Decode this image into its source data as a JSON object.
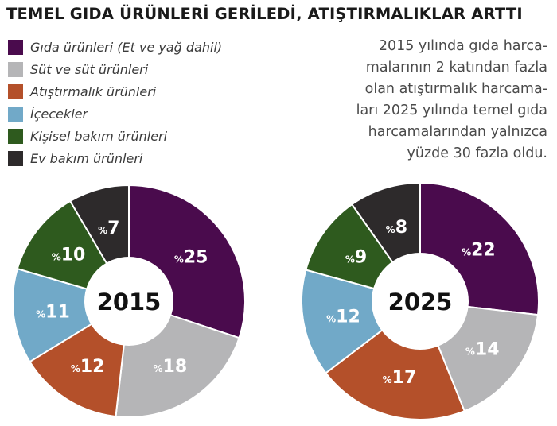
{
  "title": "TEMEL GIDA ÜRÜNLERİ GERİLEDİ, ATIŞTIRMALIKLAR ARTTI",
  "note_lines": [
    "2015 yılında gıda harca-",
    "malarının 2 katından fazla",
    "olan atıştırmalık harcama-",
    "ları 2025 yılında temel gıda",
    "harcamalarından yalnızca",
    "yüzde 30 fazla oldu."
  ],
  "percent_prefix": "%",
  "colors": {
    "gida": "#4a0b4d",
    "sut": "#b5b5b7",
    "atistirmalik": "#b4502a",
    "icecek": "#71a9c8",
    "kisisel": "#2e5a1e",
    "ev": "#2d2a2b"
  },
  "chart_data": {
    "type": "pie",
    "style": "donut",
    "categories": [
      "Gıda ürünleri (Et ve yağ dahil)",
      "Süt ve süt ürünleri",
      "Atıştırmalık ürünleri",
      "İçecekler",
      "Kişisel bakım ürünleri",
      "Ev bakım ürünleri"
    ],
    "series": [
      {
        "name": "2015",
        "values": [
          25,
          18,
          12,
          11,
          10,
          7
        ]
      },
      {
        "name": "2025",
        "values": [
          22,
          14,
          17,
          12,
          9,
          8
        ]
      }
    ],
    "legend_position": "top-left",
    "unit": "%"
  }
}
